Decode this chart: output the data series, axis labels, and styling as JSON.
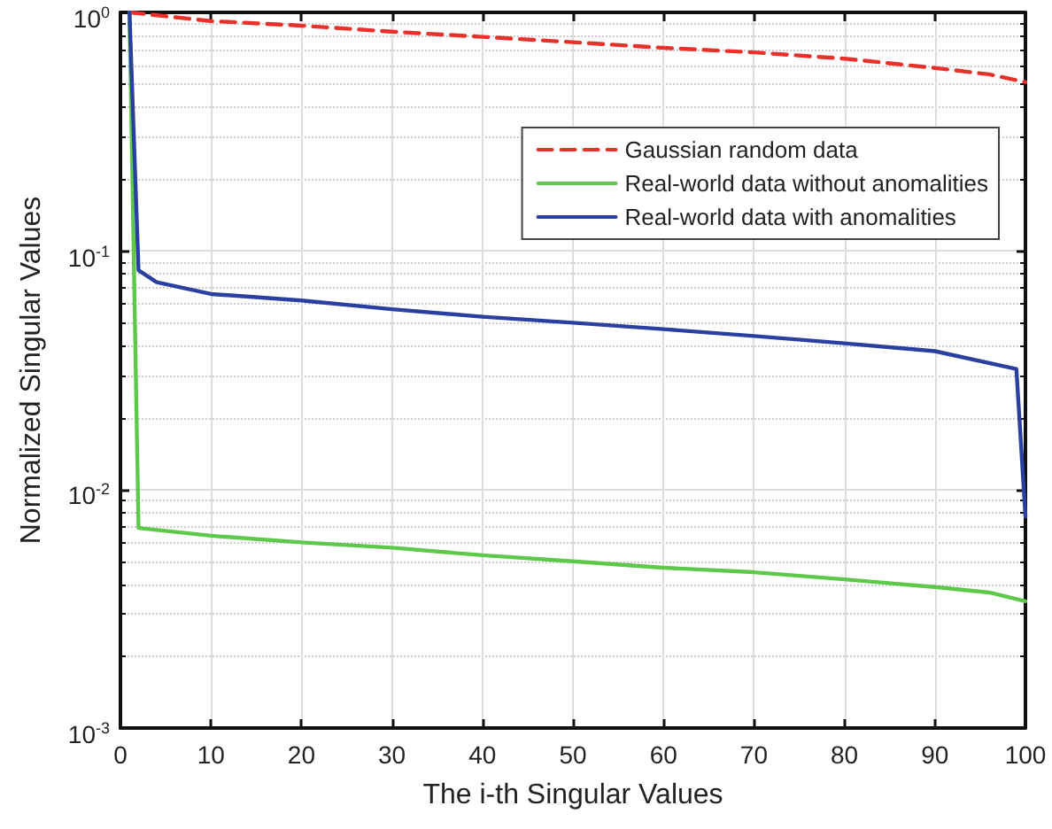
{
  "chart_data": {
    "type": "line",
    "xlabel": "The i-th Singular Values",
    "ylabel": "Normalized Singular Values",
    "log": "y",
    "grid": true,
    "legend": "top right",
    "marker": "none",
    "xlim": [
      0,
      100
    ],
    "xticks": [
      0,
      10,
      20,
      30,
      40,
      50,
      60,
      70,
      80,
      90,
      100
    ],
    "ylim": [
      0.001,
      1
    ],
    "yticks": [
      {
        "value": 0.001,
        "label": "10$^{-3}$"
      },
      {
        "value": 0.01,
        "label": "10$^{-2}$"
      },
      {
        "value": 0.1,
        "label": "10$^{-1}$"
      },
      {
        "value": 1,
        "label": "10$^{0}$"
      }
    ],
    "series": [
      {
        "name": "Gaussian random data",
        "color": "#e8312a",
        "line_style": "dashed",
        "x": [
          1,
          10,
          20,
          30,
          40,
          50,
          60,
          70,
          80,
          90,
          96,
          100
        ],
        "values": [
          1.0,
          0.92,
          0.88,
          0.83,
          0.79,
          0.75,
          0.71,
          0.68,
          0.64,
          0.585,
          0.55,
          0.51
        ]
      },
      {
        "name": "Real-world data without anomalities",
        "color": "#5dc84a",
        "line_style": "solid",
        "x": [
          1,
          2,
          10,
          20,
          30,
          40,
          50,
          60,
          70,
          80,
          90,
          96,
          100
        ],
        "values": [
          1.0,
          0.0069,
          0.0064,
          0.006,
          0.0057,
          0.0053,
          0.005,
          0.0047,
          0.0045,
          0.0042,
          0.0039,
          0.0037,
          0.0034
        ]
      },
      {
        "name": "Real-world data with anomalities",
        "color": "#2b3fa0",
        "line_style": "solid",
        "x": [
          1,
          2,
          4,
          10,
          20,
          30,
          40,
          50,
          60,
          70,
          80,
          90,
          99,
          100
        ],
        "values": [
          1.0,
          0.083,
          0.074,
          0.066,
          0.062,
          0.057,
          0.053,
          0.05,
          0.047,
          0.044,
          0.041,
          0.038,
          0.032,
          0.0077
        ]
      }
    ]
  }
}
